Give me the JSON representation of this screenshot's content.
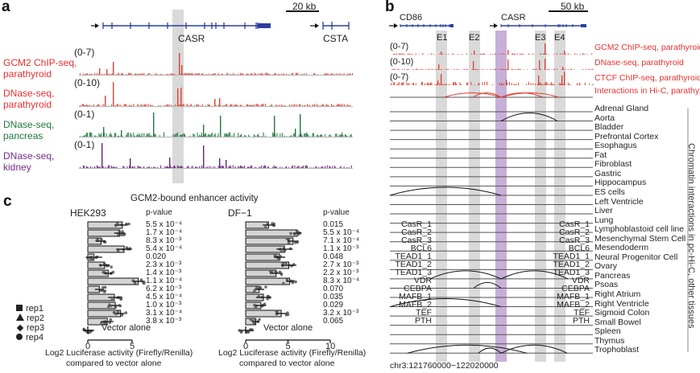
{
  "panels": {
    "a": {
      "letter": "a",
      "scale_bar": "20 kb",
      "genes": [
        "CASR",
        "CSTA"
      ],
      "tracks": [
        {
          "label_line1": "GCM2 ChIP-seq,",
          "label_line2": "parathyroid",
          "range": "(0-7)",
          "color": "#e8302f"
        },
        {
          "label_line1": "DNase-seq,",
          "label_line2": "parathyroid",
          "range": "(0-10)",
          "color": "#e8302f"
        },
        {
          "label_line1": "DNase-seq,",
          "label_line2": "pancreas",
          "range": "(0-1)",
          "color": "#1d7a3a"
        },
        {
          "label_line1": "DNase-seq,",
          "label_line2": "kidney",
          "range": "(0-1)",
          "color": "#7b2a8c"
        }
      ]
    },
    "b": {
      "letter": "b",
      "scale_bar": "50 kb",
      "genes": [
        "CD86",
        "CASR"
      ],
      "enhancers": [
        "E1",
        "E2",
        "E3",
        "E4"
      ],
      "tracks": [
        {
          "label": "GCM2 ChIP-seq, parathyroid",
          "range": "(0-7)"
        },
        {
          "label": "DNase-seq, parathyroid",
          "range": "(0-10)"
        },
        {
          "label": "CTCF ChIP-seq, parathyroid",
          "range": "(0-7)"
        },
        {
          "label": "Interactions in Hi-C, parathyroid",
          "range": ""
        }
      ],
      "tissues": [
        "Adrenal Gland",
        "Aorta",
        "Bladder",
        "Prefrontal Cortex",
        "Esophagus",
        "Fat",
        "Fibroblast",
        "Gastric",
        "Hippocampus",
        "ES cells",
        "Left Ventricle",
        "Liver",
        "Lung",
        "Lymphoblastoid cell line",
        "Mesenchymal Stem Cell",
        "Mesendoderm",
        "Neural Progenitor Cell",
        "Ovary",
        "Pancreas",
        "Psoas",
        "Right Atrium",
        "Right Ventricle",
        "Sigmoid Colon",
        "Small Bowel",
        "Spleen",
        "Thymus",
        "Trophoblast"
      ],
      "side_label": "Chromatin interactions in pc-Hi-C, other tissues",
      "coordinates": "chr3:121760000−122020000"
    },
    "c": {
      "letter": "c",
      "title": "GCM2-bound enhancer activity",
      "pvalue_header": "p-value",
      "vector_label": "Vector alone",
      "xlabel_line1": "Log2 Luciferase activity (Firefly/Renilla)",
      "xlabel_line2": "compared to vector alone",
      "legend": [
        {
          "symbol": "square",
          "label": "rep1"
        },
        {
          "symbol": "triangle",
          "label": "rep2"
        },
        {
          "symbol": "diamond",
          "label": "rep3"
        },
        {
          "symbol": "circle",
          "label": "rep4"
        }
      ]
    }
  },
  "chart_data": [
    {
      "type": "bar",
      "orientation": "horizontal",
      "title": "HEK293",
      "categories": [
        "CasR_1",
        "CasR_2",
        "CasR_3",
        "BCL6",
        "TEAD1_1",
        "TEAD1_2",
        "TEAD1_3",
        "VDR",
        "CEBPA",
        "MAFB_1",
        "MAFB_2",
        "TEF",
        "PTH"
      ],
      "values": [
        3.9,
        3.6,
        1.5,
        4.1,
        0.7,
        1.9,
        2.3,
        5.7,
        1.3,
        3.0,
        3.1,
        3.7,
        2.2
      ],
      "pvalues": [
        "5.5 x 10⁻⁴",
        "1.7 x 10⁻⁴",
        "8.3 x 10⁻³",
        "5.4 x 10⁻⁴",
        "0.020",
        "2.3 x 10⁻³",
        "1.4 x 10⁻³",
        "1.1 x 10⁻⁴",
        "6.2 x 10⁻³",
        "4.5 x 10⁻⁴",
        "1.0 x 10⁻³",
        "3.1 x 10⁻⁴",
        "3.8 x 10⁻³"
      ],
      "xlim": [
        0,
        5
      ],
      "xticks": [
        "0",
        "5"
      ],
      "xlabel": "Log2 Luciferase activity (Firefly/Renilla) compared to vector alone"
    },
    {
      "type": "bar",
      "orientation": "horizontal",
      "title": "DF−1",
      "categories": [
        "CasR_1",
        "CasR_2",
        "CasR_3",
        "BCL6",
        "TEAD1_1",
        "TEAD1_2",
        "TEAD1_3",
        "VDR",
        "CEBPA",
        "MAFB_1",
        "MAFB_2",
        "TEF",
        "PTH"
      ],
      "values": [
        2.7,
        6.1,
        5.6,
        4.6,
        4.0,
        5.1,
        3.6,
        5.2,
        1.6,
        2.1,
        1.8,
        4.2,
        1.2
      ],
      "pvalues": [
        "0.015",
        "5.5 x 10⁻⁴",
        "7.1 x 10⁻⁴",
        "1.1 x 10⁻³",
        "0.048",
        "2.7 x 10⁻³",
        "2.2 x 10⁻³",
        "8.3 x 10⁻⁴",
        "0.070",
        "0.035",
        "0.029",
        "3.2 x 10⁻³",
        "0.065"
      ],
      "xlim": [
        0,
        10
      ],
      "xticks": [
        "0",
        "5",
        "10"
      ],
      "xlabel": "Log2 Luciferase activity (Firefly/Renilla) compared to vector alone"
    }
  ]
}
